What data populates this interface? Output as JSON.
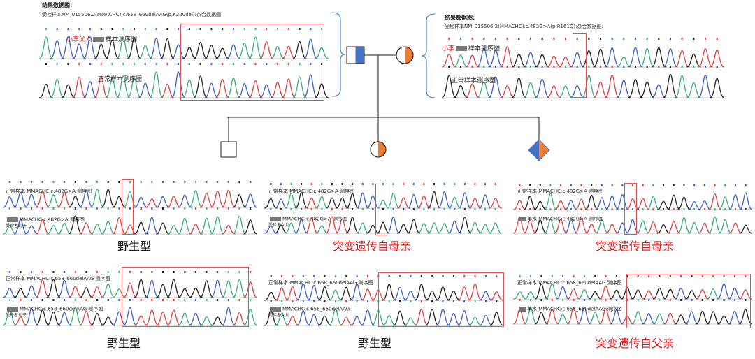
{
  "colors": {
    "father": "#4472c4",
    "mother": "#ed7d31",
    "highlight": "#e05050",
    "brace": "#4f8fd6",
    "peak_green": "#3cae7c",
    "peak_blue": "#3f5fc8",
    "peak_black": "#222222",
    "peak_red": "#e04040",
    "caption_red": "#e01010"
  },
  "father_result": {
    "header": "结果数据图:",
    "subtitle": "受检样本NM_015506.2(MMACHC):c.658_660delAAG(p.K220del):杂合数据图:",
    "patient_label_name": "小李父人",
    "patient_label_suffix": "样本测序图",
    "normal_label": "正常样本测序图"
  },
  "mother_result": {
    "header": "结果数据图:",
    "subtitle": "受检样本NM_015506.2(MMACHC):c.482G>A(p.R161Q):杂合数据图:",
    "patient_label_name": "小李",
    "patient_label_suffix": "样本测序图",
    "normal_label": "正常样本测序图"
  },
  "child_panels": [
    {
      "normal": "正常样本  MMACHC:c.482G>A  测序图",
      "sample": "MMACHC:c.482G>A    测序图",
      "sample_prefix": "",
      "tag": "受检者儿子",
      "caption": "野生型",
      "mutant": false
    },
    {
      "normal": "正常样本  MMACHC:c.482G>A  测序图",
      "sample": "MMACHC:c.482G>A  测序图",
      "sample_prefix": "",
      "tag": "受检者女儿",
      "caption": "突变遗传自母亲",
      "mutant": true
    },
    {
      "normal": "正常样本  MMACHC:c.482G>A  测序图",
      "sample": "MMACHC:c.482G>A  测序图",
      "sample_prefix": "羊水",
      "tag": "",
      "caption": "突变遗传自母亲",
      "mutant": true
    },
    {
      "normal": "正常样本  MMACHC:c.658_660delAAG  测序图",
      "sample": "MMACHC:c.658_660delAAG      测序图",
      "sample_prefix": "",
      "tag": "受检者儿子",
      "caption": "野生型",
      "mutant": false
    },
    {
      "normal": "正常样本  MMACHC:c.658_660delAAG  测序图",
      "sample": "MMACHC:c.658_660delAAG",
      "sample_prefix": "",
      "tag": "受检者女儿",
      "caption": "野生型",
      "mutant": false
    },
    {
      "normal": "正常样本  MMACHC:c.658_660delAAG  测序图",
      "sample": "MMACHC:c.658_660delAAG  测序图",
      "sample_prefix": "羊水",
      "tag": "",
      "caption": "突变遗传自父亲",
      "mutant": true
    }
  ]
}
